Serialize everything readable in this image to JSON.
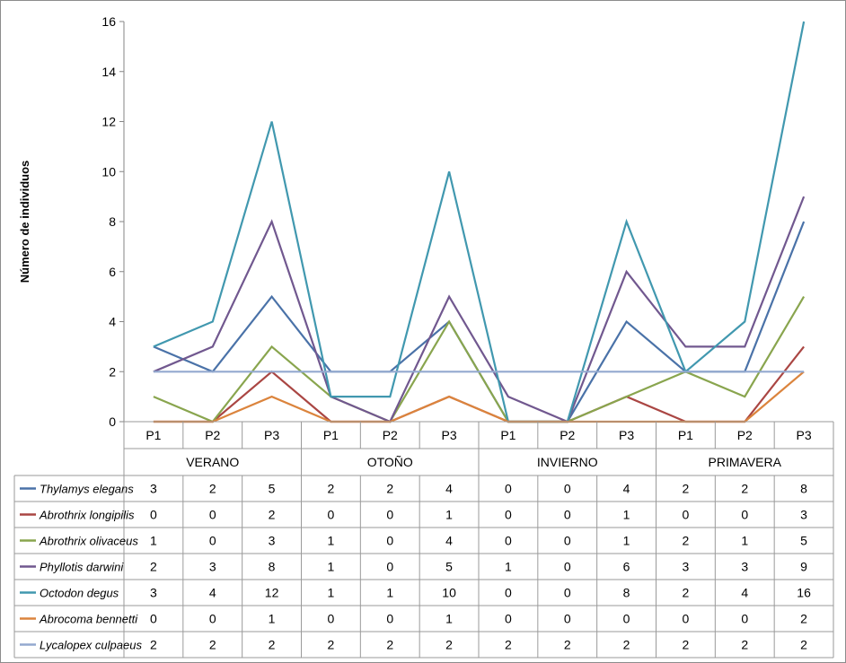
{
  "chart_data": {
    "type": "line",
    "ylabel": "Número de individuos",
    "ylim": [
      0,
      16
    ],
    "yticks": [
      0,
      2,
      4,
      6,
      8,
      10,
      12,
      14,
      16
    ],
    "grid": false,
    "seasons": [
      "VERANO",
      "OTOÑO",
      "INVIERNO",
      "PRIMAVERA"
    ],
    "categories": [
      "P1",
      "P2",
      "P3",
      "P1",
      "P2",
      "P3",
      "P1",
      "P2",
      "P3",
      "P1",
      "P2",
      "P3"
    ],
    "series": [
      {
        "name": "Thylamys elegans",
        "color": "#4a72a8",
        "values": [
          3,
          2,
          5,
          2,
          2,
          4,
          0,
          0,
          4,
          2,
          2,
          8
        ]
      },
      {
        "name": "Abrothrix longipilis",
        "color": "#aa4643",
        "values": [
          0,
          0,
          2,
          0,
          0,
          1,
          0,
          0,
          1,
          0,
          0,
          3
        ]
      },
      {
        "name": "Abrothrix olivaceus",
        "color": "#89a54e",
        "values": [
          1,
          0,
          3,
          1,
          0,
          4,
          0,
          0,
          1,
          2,
          1,
          5
        ]
      },
      {
        "name": "Phyllotis darwini",
        "color": "#71588f",
        "values": [
          2,
          3,
          8,
          1,
          0,
          5,
          1,
          0,
          6,
          3,
          3,
          9
        ]
      },
      {
        "name": "Octodon degus",
        "color": "#4198af",
        "values": [
          3,
          4,
          12,
          1,
          1,
          10,
          0,
          0,
          8,
          2,
          4,
          16
        ]
      },
      {
        "name": "Abrocoma bennetti",
        "color": "#db843d",
        "values": [
          0,
          0,
          1,
          0,
          0,
          1,
          0,
          0,
          0,
          0,
          0,
          2
        ]
      },
      {
        "name": "Lycalopex culpaeus",
        "color": "#93a9cf",
        "values": [
          2,
          2,
          2,
          2,
          2,
          2,
          2,
          2,
          2,
          2,
          2,
          2
        ]
      }
    ]
  }
}
